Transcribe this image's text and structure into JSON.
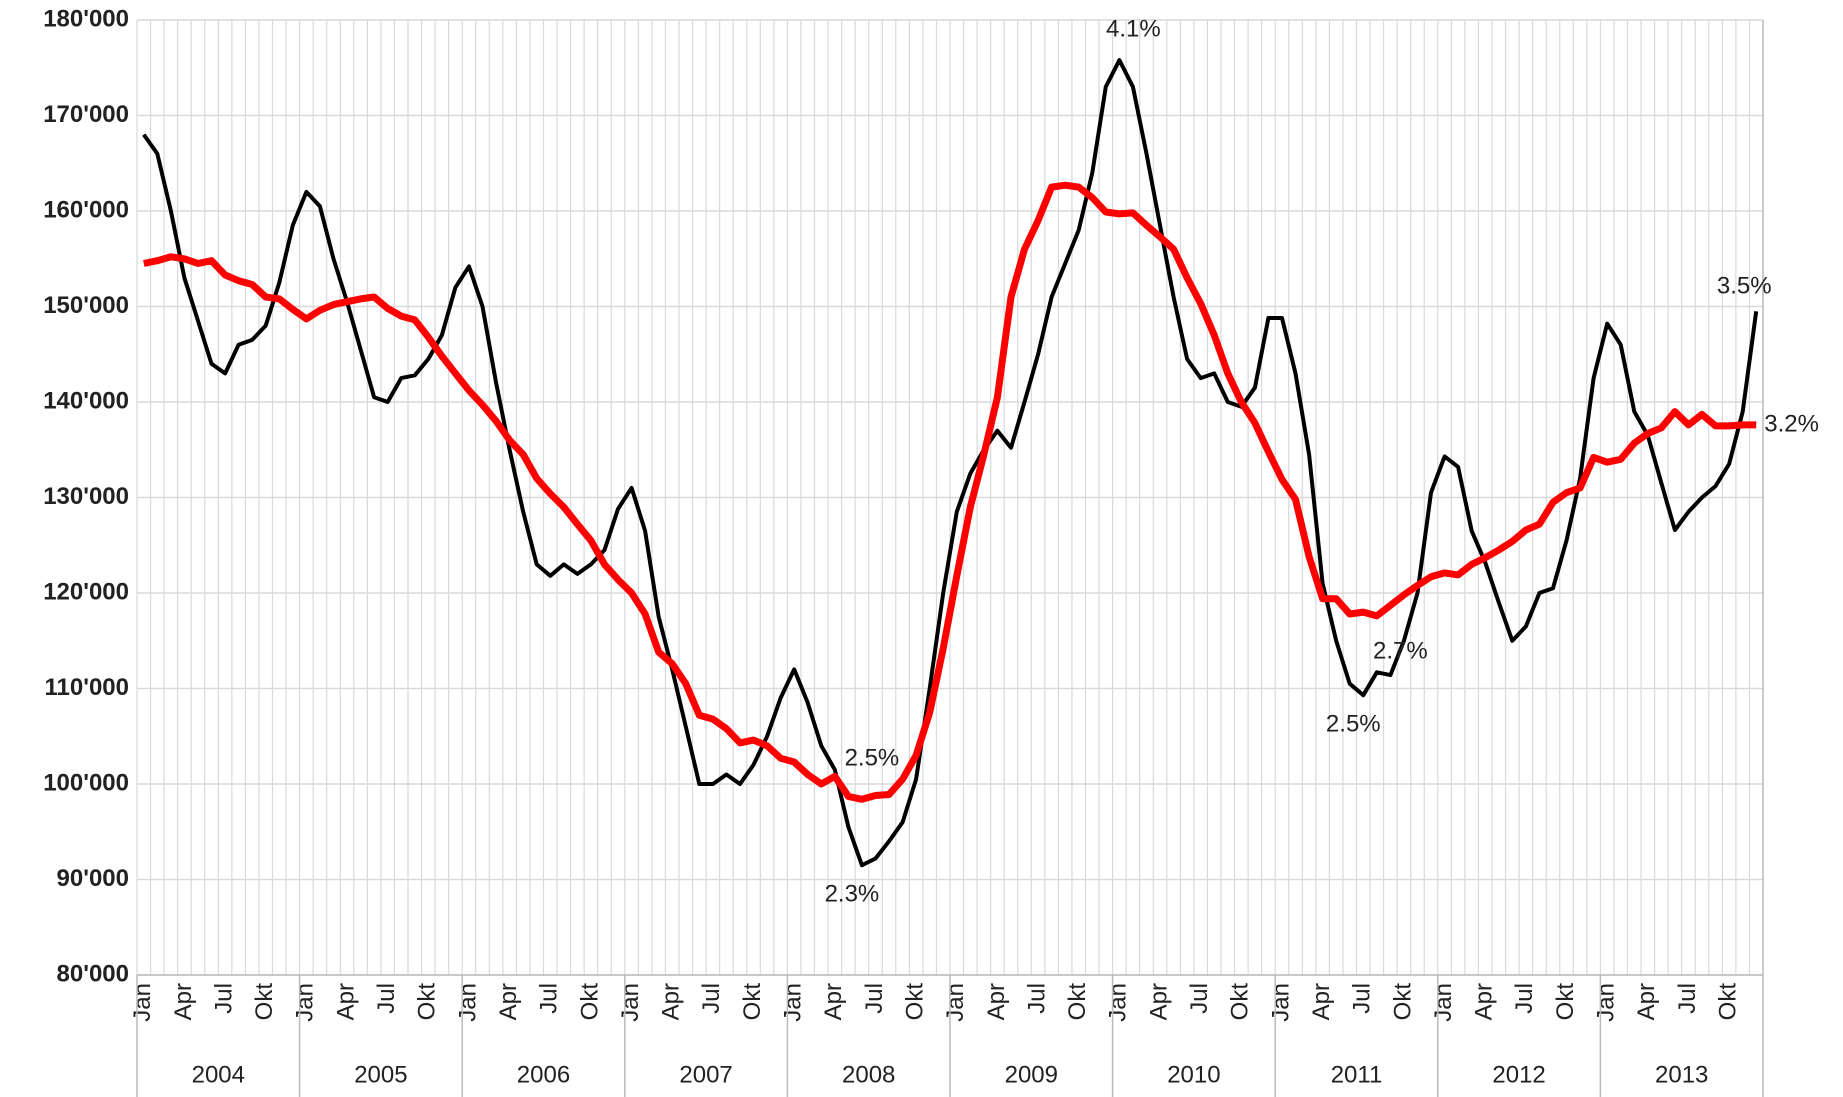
{
  "chart_data": {
    "type": "line",
    "categories": [
      "Jan",
      null,
      null,
      "Apr",
      null,
      null,
      "Jul",
      null,
      null,
      "Okt",
      null,
      null,
      "Jan",
      null,
      null,
      "Apr",
      null,
      null,
      "Jul",
      null,
      null,
      "Okt",
      null,
      null,
      "Jan",
      null,
      null,
      "Apr",
      null,
      null,
      "Jul",
      null,
      null,
      "Okt",
      null,
      null,
      "Jan",
      null,
      null,
      "Apr",
      null,
      null,
      "Jul",
      null,
      null,
      "Okt",
      null,
      null,
      "Jan",
      null,
      null,
      "Apr",
      null,
      null,
      "Jul",
      null,
      null,
      "Okt",
      null,
      null,
      "Jan",
      null,
      null,
      "Apr",
      null,
      null,
      "Jul",
      null,
      null,
      "Okt",
      null,
      null,
      "Jan",
      null,
      null,
      "Apr",
      null,
      null,
      "Jul",
      null,
      null,
      "Okt",
      null,
      null,
      "Jan",
      null,
      null,
      "Apr",
      null,
      null,
      "Jul",
      null,
      null,
      "Okt",
      null,
      null,
      "Jan",
      null,
      null,
      "Apr",
      null,
      null,
      "Jul",
      null,
      null,
      "Okt",
      null,
      null,
      "Jan",
      null,
      null,
      "Apr",
      null,
      null,
      "Jul",
      null,
      null,
      "Okt",
      null,
      null
    ],
    "groups": [
      "2004",
      "2005",
      "2006",
      "2007",
      "2008",
      "2009",
      "2010",
      "2011",
      "2012",
      "2013"
    ],
    "series": [
      {
        "color": "#000000",
        "values": [
          168000,
          166000,
          160000,
          153000,
          148500,
          144000,
          143000,
          146000,
          146500,
          148000,
          152500,
          158500,
          162000,
          160500,
          155000,
          150500,
          145500,
          140500,
          140000,
          142500,
          142800,
          144500,
          147000,
          152000,
          154200,
          150000,
          142000,
          135000,
          128500,
          123000,
          121800,
          123000,
          122000,
          123000,
          124500,
          128800,
          131000,
          126500,
          117500,
          112000,
          106000,
          100000,
          100000,
          101000,
          100000,
          102000,
          105000,
          109000,
          112000,
          108500,
          104000,
          101500,
          95500,
          91500,
          92200,
          94000,
          96000,
          100500,
          110000,
          120000,
          128500,
          132500,
          135000,
          137000,
          135200,
          140000,
          145000,
          151000,
          154500,
          158000,
          164000,
          173000,
          175800,
          173000,
          166000,
          158500,
          151000,
          144500,
          142500,
          143000,
          140000,
          139500,
          141500,
          148800,
          148800,
          143000,
          134500,
          121000,
          115000,
          110500,
          109300,
          111700,
          111400,
          115000,
          120000,
          130500,
          134300,
          133200,
          126500,
          123200,
          119000,
          115000,
          116500,
          120000,
          120500,
          125500,
          132000,
          142500,
          148200,
          146000,
          139000,
          136500,
          131500,
          126600,
          128500,
          130000,
          131200,
          133500,
          139000,
          149500
        ]
      },
      {
        "color": "#ff0000",
        "values": [
          154500,
          154800,
          155200,
          155000,
          154500,
          154800,
          153300,
          152700,
          152300,
          151000,
          150800,
          149700,
          148700,
          149600,
          150200,
          150500,
          150800,
          151000,
          149800,
          149000,
          148600,
          146800,
          144800,
          143000,
          141200,
          139700,
          138000,
          136000,
          134500,
          132000,
          130400,
          129000,
          127200,
          125500,
          123000,
          121400,
          120000,
          117800,
          113800,
          112600,
          110500,
          107200,
          106800,
          105800,
          104300,
          104600,
          104000,
          102700,
          102300,
          101000,
          100000,
          100800,
          98700,
          98400,
          98800,
          98900,
          100500,
          103000,
          107500,
          114200,
          121800,
          129000,
          134500,
          140500,
          151000,
          156000,
          159000,
          162500,
          162700,
          162500,
          161400,
          159900,
          159700,
          159800,
          158500,
          157300,
          156000,
          153000,
          150300,
          147000,
          143000,
          140000,
          137800,
          134800,
          131900,
          129800,
          123800,
          119400,
          119400,
          117800,
          118000,
          117600,
          118700,
          119800,
          120800,
          121700,
          122100,
          121900,
          123000,
          123700,
          124500,
          125400,
          126600,
          127200,
          129500,
          130500,
          131000,
          134200,
          133700,
          134000,
          135700,
          136700,
          137300,
          139000,
          137600,
          138700,
          137500,
          137500,
          137600,
          137600
        ]
      }
    ],
    "annotations": [
      {
        "text": "4.1%",
        "color": "#000000"
      },
      {
        "text": "3.5%",
        "color": "#000000"
      },
      {
        "text": "2.3%",
        "color": "#000000"
      },
      {
        "text": "2.5%",
        "color": "#000000"
      },
      {
        "text": "2.5%",
        "color": "#ff0000"
      },
      {
        "text": "2.7%",
        "color": "#ff0000"
      },
      {
        "text": "3.2%",
        "color": "#ff0000"
      }
    ],
    "ylim": [
      80000,
      180000
    ],
    "yticks": [
      {
        "value": 80000,
        "label": "80'000"
      },
      {
        "value": 90000,
        "label": "90'000"
      },
      {
        "value": 100000,
        "label": "100'000"
      },
      {
        "value": 110000,
        "label": "110'000"
      },
      {
        "value": 120000,
        "label": "120'000"
      },
      {
        "value": 130000,
        "label": "130'000"
      },
      {
        "value": 140000,
        "label": "140'000"
      },
      {
        "value": 150000,
        "label": "150'000"
      },
      {
        "value": 160000,
        "label": "160'000"
      },
      {
        "value": 170000,
        "label": "170'000"
      },
      {
        "value": 180000,
        "label": "180'000"
      }
    ],
    "grid": true
  }
}
